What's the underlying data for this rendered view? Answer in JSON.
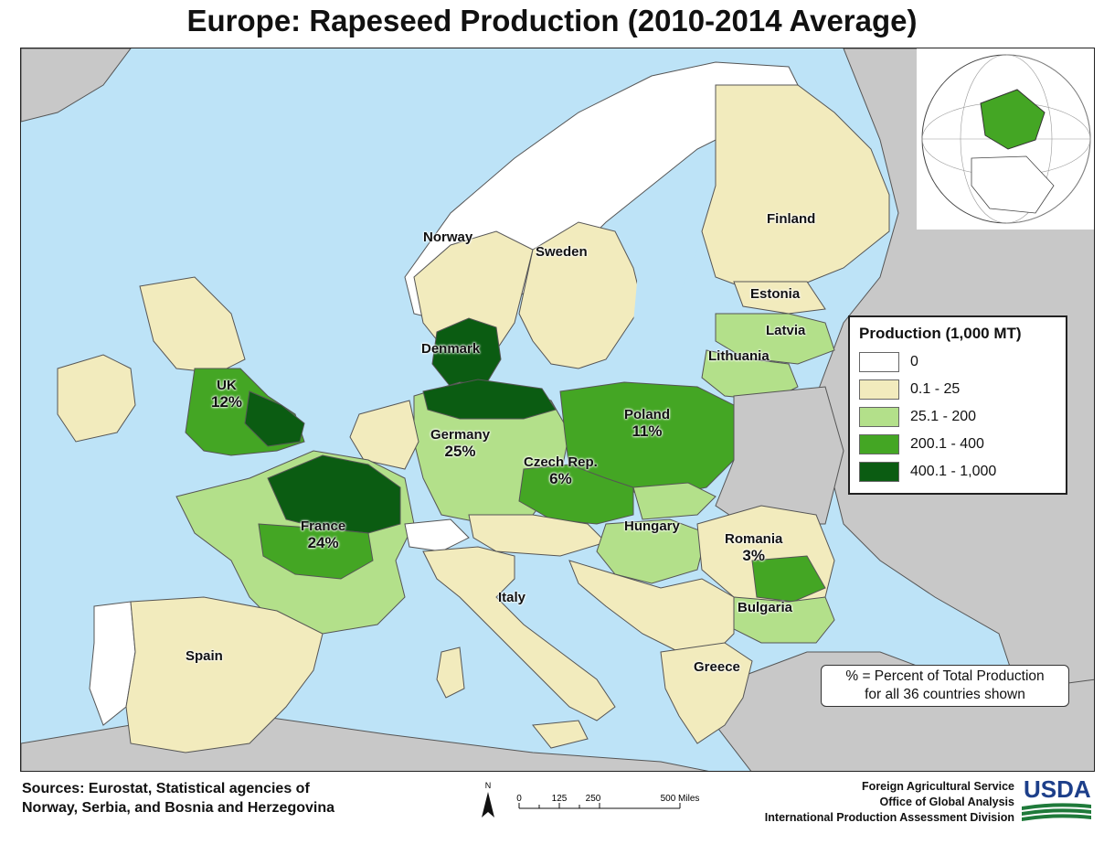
{
  "title": "Europe: Rapeseed Production (2010-2014 Average)",
  "colors": {
    "water": "#bde3f7",
    "non_study": "#c8c8c8",
    "zero": "#ffffff",
    "c1": "#f2ebbd",
    "c2": "#b3e08a",
    "c3": "#44a624",
    "c4": "#0b5c12",
    "border": "#555555"
  },
  "legend": {
    "title": "Production (1,000 MT)",
    "items": [
      {
        "label": "0",
        "color": "#ffffff"
      },
      {
        "label": "0.1 - 25",
        "color": "#f2ebbd"
      },
      {
        "label": "25.1 - 200",
        "color": "#b3e08a"
      },
      {
        "label": "200.1 - 400",
        "color": "#44a624"
      },
      {
        "label": "400.1 - 1,000",
        "color": "#0b5c12"
      }
    ]
  },
  "countries": [
    {
      "name": "Finland",
      "pct": ""
    },
    {
      "name": "Norway",
      "pct": ""
    },
    {
      "name": "Sweden",
      "pct": ""
    },
    {
      "name": "Estonia",
      "pct": ""
    },
    {
      "name": "Latvia",
      "pct": ""
    },
    {
      "name": "Lithuania",
      "pct": ""
    },
    {
      "name": "Denmark",
      "pct": ""
    },
    {
      "name": "UK",
      "pct": "12%"
    },
    {
      "name": "Poland",
      "pct": "11%"
    },
    {
      "name": "Germany",
      "pct": "25%"
    },
    {
      "name": "Czech Rep.",
      "pct": "6%"
    },
    {
      "name": "France",
      "pct": "24%"
    },
    {
      "name": "Hungary",
      "pct": ""
    },
    {
      "name": "Romania",
      "pct": "3%"
    },
    {
      "name": "Bulgaria",
      "pct": ""
    },
    {
      "name": "Italy",
      "pct": ""
    },
    {
      "name": "Spain",
      "pct": ""
    },
    {
      "name": "Greece",
      "pct": ""
    }
  ],
  "note": {
    "line1": "% = Percent of Total Production",
    "line2": "for all 36 countries shown"
  },
  "sources": {
    "line1": "Sources: Eurostat, Statistical agencies of",
    "line2": "Norway, Serbia, and Bosnia and Herzegovina"
  },
  "scale": {
    "north": "N",
    "ticks": [
      "0",
      "125",
      "250",
      "500 Miles"
    ]
  },
  "agency": {
    "line1": "Foreign Agricultural Service",
    "line2": "Office of Global Analysis",
    "line3": "International Production Assessment Division"
  },
  "logo": "USDA"
}
